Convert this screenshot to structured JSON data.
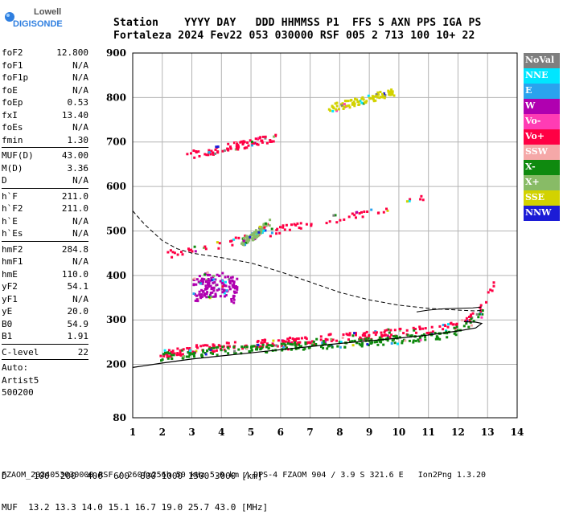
{
  "logo": {
    "brand_top": "Lowell",
    "brand_bottom": "DIGISONDE"
  },
  "header": {
    "line1": "Station    YYYY DAY   DDD HHMMSS P1  FFS S AXN PPS IGA PS",
    "line2": "Fortaleza 2024 Fev22 053 030000 RSF 005 2 713 100 10+ 22"
  },
  "params": {
    "group1": [
      {
        "name": "foF2",
        "value": "12.800"
      },
      {
        "name": "foF1",
        "value": "N/A"
      },
      {
        "name": "foF1p",
        "value": "N/A"
      },
      {
        "name": "foE",
        "value": "N/A"
      },
      {
        "name": "foEp",
        "value": "0.53"
      },
      {
        "name": "fxI",
        "value": "13.40"
      },
      {
        "name": "foEs",
        "value": "N/A"
      },
      {
        "name": "fmin",
        "value": "1.30"
      }
    ],
    "group2": [
      {
        "name": "MUF(D)",
        "value": "43.00"
      },
      {
        "name": "M(D)",
        "value": "3.36"
      },
      {
        "name": "D",
        "value": "N/A"
      }
    ],
    "group3": [
      {
        "name": "h`F",
        "value": "211.0"
      },
      {
        "name": "h`F2",
        "value": "211.0"
      },
      {
        "name": "h`E",
        "value": "N/A"
      },
      {
        "name": "h`Es",
        "value": "N/A"
      }
    ],
    "group4": [
      {
        "name": "hmF2",
        "value": "284.8"
      },
      {
        "name": "hmF1",
        "value": "N/A"
      },
      {
        "name": "hmE",
        "value": "110.0"
      },
      {
        "name": "yF2",
        "value": "54.1"
      },
      {
        "name": "yF1",
        "value": "N/A"
      },
      {
        "name": "yE",
        "value": "20.0"
      },
      {
        "name": "B0",
        "value": "54.9"
      },
      {
        "name": "B1",
        "value": "1.91"
      }
    ],
    "group5": [
      {
        "name": "C-level",
        "value": "22"
      }
    ],
    "autoscale": [
      "Auto:",
      "Artist5",
      "500200"
    ]
  },
  "legend": [
    {
      "label": "NoVal",
      "bg": "#7f7f7f",
      "fg": "#ffffff"
    },
    {
      "label": "NNE",
      "bg": "#00e6ff",
      "fg": "#ffffff"
    },
    {
      "label": "E",
      "bg": "#2aa3ee",
      "fg": "#ffffff"
    },
    {
      "label": "W",
      "bg": "#b000b0",
      "fg": "#ffffff"
    },
    {
      "label": "Vo-",
      "bg": "#ff3cb4",
      "fg": "#ffffff"
    },
    {
      "label": "Vo+",
      "bg": "#ff0044",
      "fg": "#ffffff"
    },
    {
      "label": "SSW",
      "bg": "#f5a8a8",
      "fg": "#ffffff"
    },
    {
      "label": "X-",
      "bg": "#0f8a0f",
      "fg": "#ffffff"
    },
    {
      "label": "X+",
      "bg": "#88bb66",
      "fg": "#ffffff"
    },
    {
      "label": "SSE",
      "bg": "#d2d200",
      "fg": "#ffffff"
    },
    {
      "label": "NNW",
      "bg": "#1c1cd6",
      "fg": "#ffffff"
    }
  ],
  "footer": {
    "d_row": "D     100  200  400  600  800 1000 1500 3000 [km]",
    "muf_row": "MUF  13.2 13.3 14.0 15.1 16.7 19.0 25.7 43.0 [MHz]",
    "source": "FZAOM_2024053030000.RSF / 260fx256h 50 kHz 5.0 km / DPS-4 FZAOM 904 / 3.9 S 321.6 E   Ion2Png 1.3.20"
  },
  "chart_data": {
    "type": "scatter",
    "xlim": [
      1,
      14
    ],
    "ylim": [
      80,
      900
    ],
    "x_ticks": [
      1,
      2,
      3,
      4,
      5,
      6,
      7,
      8,
      9,
      10,
      11,
      12,
      13,
      14
    ],
    "y_ticks": [
      80,
      200,
      300,
      400,
      500,
      600,
      700,
      800,
      900
    ],
    "grid": true,
    "solid_profile": {
      "x": [
        1.0,
        1.5,
        2.0,
        3.0,
        4.0,
        5.0,
        6.0,
        7.0,
        8.0,
        9.0,
        10.0,
        11.0,
        12.0,
        12.6,
        12.8,
        12.6,
        12.2
      ],
      "y": [
        193,
        198,
        203,
        212,
        219,
        226,
        233,
        240,
        247,
        253,
        259,
        266,
        275,
        282,
        292,
        295,
        296
      ]
    },
    "dashed_profile": {
      "x": [
        1.0,
        1.4,
        2.0,
        2.5,
        3.0,
        4.0,
        5.0,
        6.0,
        7.0,
        8.0,
        9.0,
        10.0,
        11.0,
        12.0,
        12.6,
        12.8
      ],
      "y": [
        545,
        515,
        478,
        460,
        450,
        440,
        428,
        408,
        385,
        362,
        345,
        333,
        326,
        322,
        320,
        322
      ]
    },
    "f2_trace_line": {
      "x": [
        10.6,
        11.0,
        11.5,
        12.0,
        12.5,
        12.8
      ],
      "y": [
        318,
        322,
        325,
        326,
        327,
        329
      ]
    },
    "traces": [
      {
        "mode": "O-F2",
        "x": [
          1.9,
          2.5,
          3.0,
          4.0,
          5.0,
          6.0,
          7.0,
          8.0,
          9.0,
          10.0,
          11.0,
          11.6,
          12.2,
          12.6,
          12.9,
          13.2
        ],
        "y": [
          226,
          231,
          236,
          242,
          248,
          253,
          258,
          264,
          268,
          275,
          280,
          286,
          296,
          318,
          345,
          388
        ],
        "color": "#ff0044"
      },
      {
        "mode": "X-F2",
        "x": [
          1.9,
          2.5,
          3.0,
          4.0,
          5.0,
          6.0,
          7.0,
          8.0,
          9.0,
          10.0,
          11.0,
          11.6,
          12.2,
          12.8
        ],
        "y": [
          220,
          224,
          228,
          233,
          237,
          241,
          245,
          249,
          253,
          258,
          264,
          271,
          285,
          318
        ],
        "color": "#0f8a0f"
      },
      {
        "mode": "O-2hop",
        "x": [
          2.1,
          3.0,
          4.0,
          5.0,
          6.0,
          7.0,
          8.0,
          9.0,
          10.0,
          10.8
        ],
        "y": [
          448,
          460,
          474,
          490,
          506,
          520,
          533,
          545,
          560,
          576
        ],
        "color": "#ff0044"
      },
      {
        "mode": "X-2hop",
        "x": [
          4.6,
          5.0,
          5.3,
          5.6
        ],
        "y": [
          476,
          488,
          505,
          520
        ],
        "color": "#88bb66"
      },
      {
        "mode": "W-spread",
        "x": [
          3.0,
          3.5,
          4.0,
          4.5
        ],
        "y": [
          370,
          380,
          380,
          365
        ],
        "color": "#b000b0"
      },
      {
        "mode": "O-3hop",
        "x": [
          2.8,
          4.0,
          5.0,
          5.8
        ],
        "y": [
          672,
          687,
          701,
          713
        ],
        "color": "#ff0044"
      },
      {
        "mode": "X-3hop",
        "x": [
          7.6,
          8.4,
          9.0,
          9.8
        ],
        "y": [
          778,
          790,
          800,
          815
        ],
        "color": "#d2d200"
      }
    ]
  }
}
